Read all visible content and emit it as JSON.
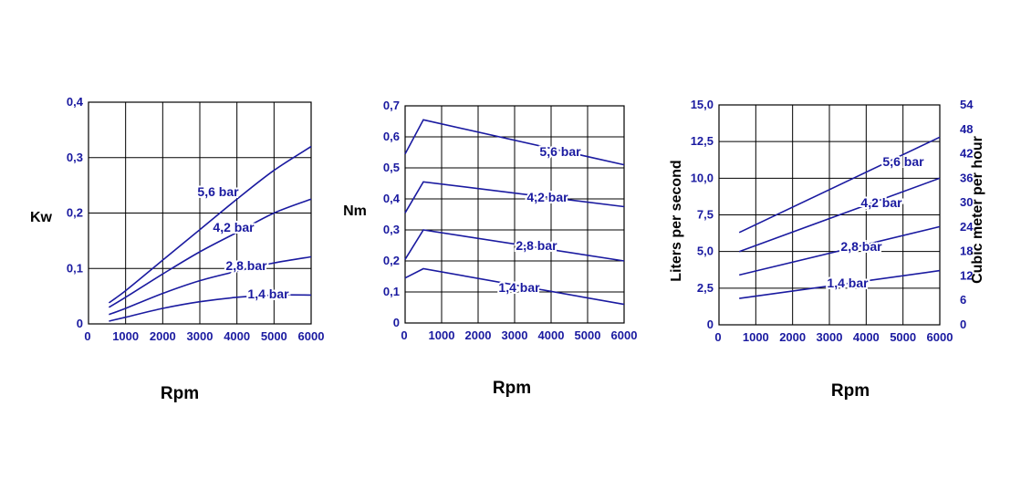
{
  "colors": {
    "series": "#1a1aa0",
    "tick": "#1a1aa0",
    "grid": "#000000",
    "axis_title": "#000000"
  },
  "chart_data": [
    {
      "type": "line",
      "xlabel": "Rpm",
      "ylabel": "Kw",
      "xlim": [
        0,
        6000
      ],
      "ylim": [
        0,
        0.4
      ],
      "x_ticks": [
        "0",
        "1000",
        "2000",
        "3000",
        "4000",
        "5000",
        "6000"
      ],
      "y_ticks": [
        "0",
        "0,1",
        "0,2",
        "0,3",
        "0,4"
      ],
      "grid": true,
      "series": [
        {
          "name": "5,6 bar",
          "x": [
            550,
            1000,
            2000,
            3000,
            4000,
            5000,
            6000
          ],
          "y": [
            0.038,
            0.06,
            0.115,
            0.17,
            0.225,
            0.277,
            0.32
          ]
        },
        {
          "name": "4,2 bar",
          "x": [
            550,
            1000,
            2000,
            3000,
            4000,
            5000,
            6000
          ],
          "y": [
            0.03,
            0.048,
            0.09,
            0.13,
            0.165,
            0.2,
            0.225
          ]
        },
        {
          "name": "2,8 bar",
          "x": [
            550,
            1000,
            2000,
            3000,
            4000,
            5000,
            6000
          ],
          "y": [
            0.017,
            0.028,
            0.055,
            0.078,
            0.095,
            0.11,
            0.121
          ]
        },
        {
          "name": "1,4 bar",
          "x": [
            550,
            1000,
            2000,
            3000,
            4000,
            5000,
            6000
          ],
          "y": [
            0.005,
            0.012,
            0.028,
            0.04,
            0.048,
            0.052,
            0.052
          ]
        }
      ]
    },
    {
      "type": "line",
      "xlabel": "Rpm",
      "ylabel": "Nm",
      "xlim": [
        0,
        6000
      ],
      "ylim": [
        0,
        0.7
      ],
      "x_ticks": [
        "0",
        "1000",
        "2000",
        "3000",
        "4000",
        "5000",
        "6000"
      ],
      "y_ticks": [
        "0",
        "0,1",
        "0,2",
        "0,3",
        "0,4",
        "0,5",
        "0,6",
        "0,7"
      ],
      "grid": true,
      "series": [
        {
          "name": "5,6 bar",
          "x": [
            0,
            500,
            6000
          ],
          "y": [
            0.545,
            0.655,
            0.51
          ]
        },
        {
          "name": "4,2 bar",
          "x": [
            0,
            500,
            6000
          ],
          "y": [
            0.355,
            0.455,
            0.375
          ]
        },
        {
          "name": "2,8 bar",
          "x": [
            0,
            500,
            6000
          ],
          "y": [
            0.205,
            0.3,
            0.2
          ]
        },
        {
          "name": "1,4 bar",
          "x": [
            0,
            500,
            6000
          ],
          "y": [
            0.145,
            0.175,
            0.06
          ]
        }
      ]
    },
    {
      "type": "line",
      "xlabel": "Rpm",
      "ylabel": "Liters per second",
      "y2label": "Cubic meter per hour",
      "xlim": [
        0,
        6000
      ],
      "ylim": [
        0,
        15
      ],
      "y2lim": [
        0,
        54
      ],
      "x_ticks": [
        "0",
        "1000",
        "2000",
        "3000",
        "4000",
        "5000",
        "6000"
      ],
      "y_ticks": [
        "0",
        "2,5",
        "5,0",
        "7,5",
        "10,0",
        "12,5",
        "15,0"
      ],
      "y2_ticks": [
        "0",
        "6",
        "12",
        "18",
        "24",
        "30",
        "36",
        "42",
        "48",
        "54"
      ],
      "grid": true,
      "series": [
        {
          "name": "5,6 bar",
          "x": [
            550,
            6000
          ],
          "y": [
            6.3,
            12.8
          ]
        },
        {
          "name": "4,2 bar",
          "x": [
            550,
            6000
          ],
          "y": [
            5.0,
            10.0
          ]
        },
        {
          "name": "2,8 bar",
          "x": [
            550,
            6000
          ],
          "y": [
            3.4,
            6.7
          ]
        },
        {
          "name": "1,4 bar",
          "x": [
            550,
            6000
          ],
          "y": [
            1.8,
            3.7
          ]
        }
      ]
    }
  ]
}
